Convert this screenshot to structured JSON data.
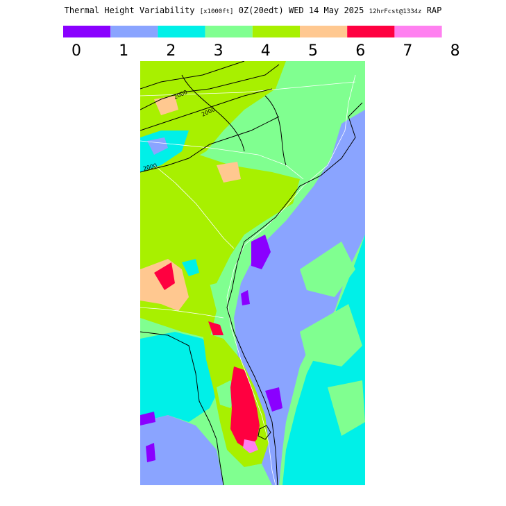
{
  "title": {
    "main": "Thermal Height Variability",
    "units": "[x1000ft]",
    "time": "0Z(20edt)",
    "date": "WED 14 May 2025",
    "forecast": "12hrFcst@1334z",
    "model": "RAP"
  },
  "legend": {
    "ticks": [
      "0",
      "1",
      "2",
      "3",
      "4",
      "5",
      "6",
      "7",
      "8"
    ],
    "colors": [
      "#8a00ff",
      "#8aa4ff",
      "#00f0e8",
      "#80ff90",
      "#a8f000",
      "#ffc890",
      "#ff0040",
      "#ff80f0"
    ]
  },
  "contours": {
    "labels": [
      "2000",
      "2000",
      "2000"
    ]
  },
  "colors": {
    "background": "#ffffff",
    "boundary": "#ffffff",
    "contour": "#000000"
  }
}
